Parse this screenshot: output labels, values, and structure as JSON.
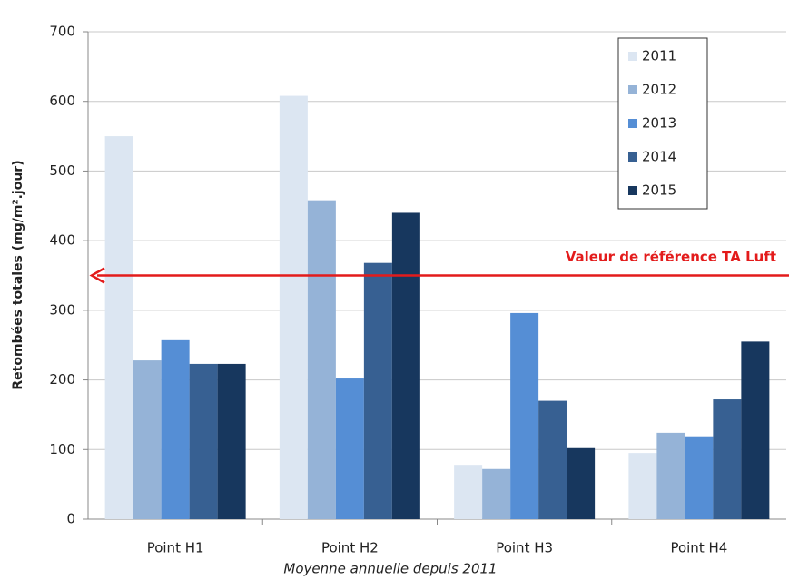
{
  "chart_data": {
    "type": "bar",
    "ylabel": "Retombées totales (mg/m².jour)",
    "caption": "Moyenne annuelle depuis 2011",
    "categories": [
      "Point H1",
      "Point H2",
      "Point H3",
      "Point H4"
    ],
    "series": [
      {
        "name": "2011",
        "color": "#dce6f2",
        "values": [
          550,
          608,
          78,
          95
        ]
      },
      {
        "name": "2012",
        "color": "#95b3d7",
        "values": [
          228,
          458,
          72,
          124
        ]
      },
      {
        "name": "2013",
        "color": "#558ed5",
        "values": [
          257,
          202,
          296,
          119
        ]
      },
      {
        "name": "2014",
        "color": "#376092",
        "values": [
          223,
          368,
          170,
          172
        ]
      },
      {
        "name": "2015",
        "color": "#17375e",
        "values": [
          223,
          440,
          102,
          255
        ]
      }
    ],
    "reference_line": {
      "value": 350,
      "label": "Valeur de référence TA Luft",
      "color": "#e31b1b"
    },
    "ylim": [
      0,
      700
    ],
    "yticks": [
      0,
      100,
      200,
      300,
      400,
      500,
      600,
      700
    ],
    "grid": true,
    "legend": "upper right"
  }
}
